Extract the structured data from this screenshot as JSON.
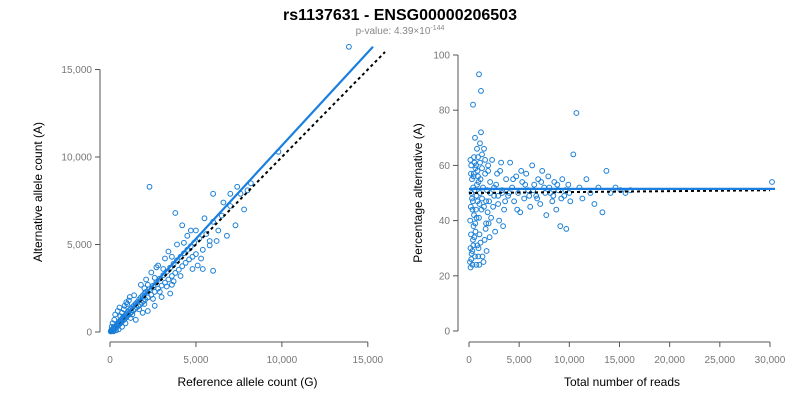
{
  "title": "rs1137631 - ENSG00000206503",
  "subtitle": {
    "prefix": "p-value: 4.39×10",
    "exponent": "-144"
  },
  "colors": {
    "points": "#1a7fd6",
    "fit": "#1a7fe0",
    "reference": "#000000",
    "axis": "#555555",
    "tick_text": "#777777"
  },
  "chart_data": [
    {
      "type": "scatter",
      "xlabel": "Reference allele count (G)",
      "ylabel": "Alternative allele count (A)",
      "xlim": [
        0,
        16000
      ],
      "ylim": [
        0,
        16000
      ],
      "xticks": [
        0,
        5000,
        10000,
        15000
      ],
      "xtick_labels": [
        "0",
        "5,000",
        "10,000",
        "15,000"
      ],
      "yticks": [
        0,
        5000,
        10000,
        15000
      ],
      "ytick_labels": [
        "0",
        "5,000",
        "10,000",
        "15,000"
      ],
      "fit_line": {
        "x": [
          0,
          15300
        ],
        "y": [
          0,
          16300
        ]
      },
      "reference_line": {
        "x": [
          0,
          16000
        ],
        "y": [
          0,
          16000
        ]
      },
      "points": [
        [
          40,
          30
        ],
        [
          60,
          80
        ],
        [
          80,
          50
        ],
        [
          100,
          120
        ],
        [
          120,
          60
        ],
        [
          150,
          170
        ],
        [
          180,
          140
        ],
        [
          200,
          90
        ],
        [
          220,
          260
        ],
        [
          250,
          210
        ],
        [
          280,
          300
        ],
        [
          300,
          180
        ],
        [
          330,
          350
        ],
        [
          360,
          280
        ],
        [
          400,
          420
        ],
        [
          420,
          320
        ],
        [
          450,
          480
        ],
        [
          480,
          390
        ],
        [
          500,
          560
        ],
        [
          530,
          430
        ],
        [
          560,
          620
        ],
        [
          600,
          500
        ],
        [
          630,
          680
        ],
        [
          660,
          560
        ],
        [
          700,
          760
        ],
        [
          730,
          620
        ],
        [
          760,
          820
        ],
        [
          800,
          700
        ],
        [
          830,
          900
        ],
        [
          860,
          760
        ],
        [
          900,
          980
        ],
        [
          940,
          840
        ],
        [
          980,
          1060
        ],
        [
          1000,
          920
        ],
        [
          1050,
          1150
        ],
        [
          1080,
          980
        ],
        [
          1120,
          1240
        ],
        [
          1160,
          1060
        ],
        [
          1200,
          1320
        ],
        [
          1250,
          1140
        ],
        [
          1300,
          1420
        ],
        [
          1350,
          1220
        ],
        [
          1400,
          1520
        ],
        [
          1450,
          1310
        ],
        [
          1500,
          1620
        ],
        [
          1550,
          1400
        ],
        [
          1600,
          1720
        ],
        [
          1650,
          1480
        ],
        [
          1700,
          1860
        ],
        [
          1750,
          1560
        ],
        [
          1800,
          1980
        ],
        [
          1850,
          1660
        ],
        [
          1900,
          2080
        ],
        [
          1950,
          1760
        ],
        [
          2000,
          2200
        ],
        [
          2050,
          1860
        ],
        [
          2100,
          2300
        ],
        [
          2200,
          1980
        ],
        [
          2300,
          2450
        ],
        [
          2400,
          2120
        ],
        [
          2500,
          2640
        ],
        [
          2600,
          2300
        ],
        [
          2700,
          2850
        ],
        [
          2800,
          2480
        ],
        [
          2900,
          3050
        ],
        [
          3000,
          2650
        ],
        [
          3100,
          3250
        ],
        [
          3200,
          2820
        ],
        [
          3300,
          3450
        ],
        [
          3400,
          3000
        ],
        [
          3500,
          3680
        ],
        [
          3600,
          3200
        ],
        [
          3700,
          3900
        ],
        [
          3800,
          3380
        ],
        [
          3900,
          4100
        ],
        [
          4000,
          3560
        ],
        [
          4100,
          4300
        ],
        [
          4200,
          3760
        ],
        [
          4300,
          4500
        ],
        [
          4400,
          3950
        ],
        [
          4500,
          4700
        ],
        [
          4600,
          4150
        ],
        [
          4700,
          4900
        ],
        [
          4800,
          4300
        ],
        [
          4900,
          5100
        ],
        [
          5000,
          4450
        ],
        [
          5200,
          5350
        ],
        [
          5400,
          4700
        ],
        [
          5600,
          5600
        ],
        [
          5800,
          4950
        ],
        [
          6000,
          6300
        ],
        [
          6200,
          5200
        ],
        [
          6500,
          6650
        ],
        [
          6800,
          5500
        ],
        [
          7000,
          7200
        ],
        [
          7300,
          6100
        ],
        [
          7600,
          7900
        ],
        [
          8000,
          8100
        ],
        [
          8200,
          8500
        ],
        [
          7800,
          7000
        ],
        [
          2300,
          8300
        ],
        [
          3800,
          6800
        ],
        [
          4500,
          5500
        ],
        [
          6000,
          7900
        ],
        [
          4200,
          6100
        ],
        [
          7000,
          7900
        ],
        [
          9800,
          10300
        ],
        [
          13900,
          16300
        ],
        [
          6300,
          5800
        ],
        [
          5100,
          3800
        ],
        [
          5400,
          3600
        ],
        [
          6000,
          3500
        ],
        [
          3600,
          2700
        ],
        [
          3000,
          2000
        ],
        [
          2600,
          1500
        ],
        [
          2200,
          1200
        ],
        [
          1900,
          1100
        ],
        [
          1500,
          700
        ],
        [
          1200,
          800
        ],
        [
          900,
          500
        ],
        [
          700,
          300
        ],
        [
          500,
          150
        ],
        [
          350,
          100
        ],
        [
          200,
          40
        ],
        [
          2700,
          3700
        ],
        [
          3200,
          4200
        ],
        [
          1000,
          1600
        ],
        [
          1400,
          2100
        ],
        [
          1800,
          2700
        ],
        [
          2100,
          3000
        ],
        [
          2400,
          3400
        ],
        [
          2800,
          3800
        ],
        [
          3400,
          4600
        ],
        [
          3900,
          5000
        ],
        [
          4700,
          5800
        ],
        [
          5500,
          6500
        ],
        [
          6600,
          7400
        ],
        [
          7400,
          8300
        ],
        [
          5000,
          5800
        ],
        [
          4300,
          5100
        ],
        [
          600,
          900
        ],
        [
          800,
          1300
        ],
        [
          1100,
          1800
        ],
        [
          1300,
          1000
        ],
        [
          1700,
          1300
        ],
        [
          2000,
          1600
        ],
        [
          2500,
          1900
        ],
        [
          2900,
          2300
        ],
        [
          3300,
          2600
        ],
        [
          3700,
          2900
        ],
        [
          100,
          300
        ],
        [
          150,
          500
        ],
        [
          250,
          700
        ],
        [
          300,
          1000
        ],
        [
          450,
          1200
        ],
        [
          550,
          1400
        ],
        [
          700,
          1100
        ],
        [
          850,
          1500
        ],
        [
          950,
          1700
        ],
        [
          1150,
          2000
        ],
        [
          3500,
          2200
        ],
        [
          4100,
          3200
        ],
        [
          4800,
          3600
        ],
        [
          5300,
          4200
        ],
        [
          5800,
          5200
        ],
        [
          2000,
          2500
        ],
        [
          2200,
          2700
        ],
        [
          2600,
          3100
        ],
        [
          3100,
          3600
        ],
        [
          3600,
          4300
        ]
      ]
    },
    {
      "type": "scatter",
      "xlabel": "Total number of reads",
      "ylabel": "Percentage alternative (A)",
      "xlim": [
        0,
        30500
      ],
      "ylim": [
        0,
        100
      ],
      "xticks": [
        0,
        5000,
        10000,
        15000,
        20000,
        25000,
        30000
      ],
      "xtick_labels": [
        "0",
        "5,000",
        "10,000",
        "15,000",
        "20,000",
        "25,000",
        "30,000"
      ],
      "yticks": [
        0,
        20,
        40,
        60,
        80,
        100
      ],
      "ytick_labels": [
        "0",
        "20",
        "40",
        "60",
        "80",
        "100"
      ],
      "fit_line": {
        "x": [
          0,
          30500
        ],
        "y": [
          51.5,
          51.5
        ]
      },
      "reference_line": {
        "x": [
          0,
          30000
        ],
        "y": [
          50,
          51
        ]
      },
      "points": [
        [
          100,
          25
        ],
        [
          150,
          30
        ],
        [
          200,
          35
        ],
        [
          120,
          40
        ],
        [
          180,
          45
        ],
        [
          250,
          50
        ],
        [
          300,
          55
        ],
        [
          220,
          60
        ],
        [
          140,
          62
        ],
        [
          260,
          28
        ],
        [
          350,
          24
        ],
        [
          400,
          33
        ],
        [
          450,
          38
        ],
        [
          500,
          42
        ],
        [
          380,
          47
        ],
        [
          420,
          52
        ],
        [
          480,
          57
        ],
        [
          550,
          61
        ],
        [
          600,
          27
        ],
        [
          650,
          36
        ],
        [
          700,
          44
        ],
        [
          750,
          49
        ],
        [
          800,
          53
        ],
        [
          850,
          58
        ],
        [
          900,
          63
        ],
        [
          950,
          30
        ],
        [
          1000,
          41
        ],
        [
          1050,
          46
        ],
        [
          1100,
          50
        ],
        [
          1150,
          55
        ],
        [
          1200,
          72
        ],
        [
          1300,
          48
        ],
        [
          1400,
          52
        ],
        [
          1500,
          45
        ],
        [
          1600,
          57
        ],
        [
          1700,
          39
        ],
        [
          1800,
          51
        ],
        [
          1900,
          60
        ],
        [
          2000,
          47
        ],
        [
          2100,
          54
        ],
        [
          1000,
          93
        ],
        [
          1200,
          87
        ],
        [
          400,
          82
        ],
        [
          1500,
          66
        ],
        [
          2300,
          62
        ],
        [
          2500,
          49
        ],
        [
          2700,
          53
        ],
        [
          2900,
          46
        ],
        [
          3100,
          58
        ],
        [
          3300,
          51
        ],
        [
          3500,
          44
        ],
        [
          3700,
          55
        ],
        [
          3900,
          49
        ],
        [
          4100,
          61
        ],
        [
          4300,
          52
        ],
        [
          4500,
          47
        ],
        [
          4700,
          56
        ],
        [
          4900,
          50
        ],
        [
          5100,
          43
        ],
        [
          5300,
          54
        ],
        [
          5500,
          48
        ],
        [
          5700,
          57
        ],
        [
          5900,
          51
        ],
        [
          6100,
          45
        ],
        [
          6300,
          60
        ],
        [
          6500,
          53
        ],
        [
          6700,
          49
        ],
        [
          6900,
          55
        ],
        [
          7100,
          46
        ],
        [
          7300,
          58
        ],
        [
          7500,
          52
        ],
        [
          7700,
          42
        ],
        [
          7900,
          56
        ],
        [
          8100,
          50
        ],
        [
          8300,
          47
        ],
        [
          8500,
          54
        ],
        [
          8700,
          44
        ],
        [
          8900,
          51
        ],
        [
          9100,
          38
        ],
        [
          9300,
          55
        ],
        [
          9500,
          49
        ],
        [
          9700,
          37
        ],
        [
          9900,
          53
        ],
        [
          10100,
          47
        ],
        [
          10400,
          64
        ],
        [
          10700,
          79
        ],
        [
          11000,
          52
        ],
        [
          11300,
          48
        ],
        [
          11700,
          55
        ],
        [
          12100,
          50
        ],
        [
          12500,
          46
        ],
        [
          12900,
          52
        ],
        [
          13300,
          43
        ],
        [
          13700,
          58
        ],
        [
          14100,
          50
        ],
        [
          14600,
          52
        ],
        [
          15100,
          51
        ],
        [
          15600,
          50
        ],
        [
          16100,
          51
        ],
        [
          30200,
          54
        ],
        [
          600,
          70
        ],
        [
          800,
          66
        ],
        [
          1100,
          68
        ],
        [
          1300,
          64
        ],
        [
          1600,
          62
        ],
        [
          1900,
          58
        ],
        [
          2200,
          41
        ],
        [
          2600,
          36
        ],
        [
          3000,
          40
        ],
        [
          3400,
          38
        ],
        [
          200,
          57
        ],
        [
          300,
          48
        ],
        [
          350,
          44
        ],
        [
          450,
          56
        ],
        [
          550,
          51
        ],
        [
          650,
          59
        ],
        [
          750,
          41
        ],
        [
          850,
          47
        ],
        [
          950,
          54
        ],
        [
          1050,
          35
        ],
        [
          1150,
          32
        ],
        [
          1250,
          44
        ],
        [
          1350,
          27
        ],
        [
          1450,
          25
        ],
        [
          1550,
          33
        ],
        [
          1650,
          37
        ],
        [
          1750,
          29
        ],
        [
          1850,
          43
        ],
        [
          1950,
          39
        ],
        [
          2050,
          34
        ],
        [
          160,
          23
        ],
        [
          230,
          26
        ],
        [
          330,
          29
        ],
        [
          430,
          31
        ],
        [
          530,
          34
        ],
        [
          630,
          39
        ],
        [
          730,
          24
        ],
        [
          830,
          31
        ],
        [
          930,
          27
        ],
        [
          1030,
          24
        ],
        [
          2400,
          45
        ],
        [
          2800,
          57
        ],
        [
          3200,
          61
        ],
        [
          3600,
          47
        ],
        [
          4000,
          50
        ],
        [
          4400,
          55
        ],
        [
          4800,
          44
        ],
        [
          5200,
          58
        ],
        [
          5600,
          53
        ],
        [
          6000,
          49
        ],
        [
          6400,
          51
        ],
        [
          6800,
          48
        ],
        [
          7200,
          54
        ],
        [
          7600,
          50
        ],
        [
          8000,
          52
        ],
        [
          8400,
          49
        ],
        [
          8800,
          53
        ],
        [
          9200,
          48
        ],
        [
          9600,
          51
        ],
        [
          10000,
          50
        ],
        [
          500,
          63
        ],
        [
          700,
          60
        ],
        [
          900,
          56
        ],
        [
          1100,
          61
        ],
        [
          1300,
          59
        ],
        [
          1700,
          47
        ],
        [
          2100,
          50
        ],
        [
          2500,
          52
        ],
        [
          2900,
          49
        ],
        [
          3300,
          50
        ]
      ]
    }
  ]
}
